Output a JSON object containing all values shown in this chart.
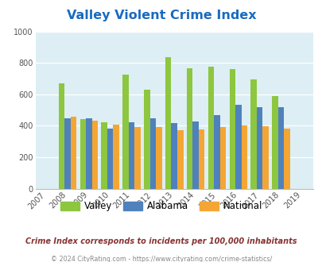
{
  "title": "Valley Violent Crime Index",
  "years": [
    2007,
    2008,
    2009,
    2010,
    2011,
    2012,
    2013,
    2014,
    2015,
    2016,
    2017,
    2018,
    2019
  ],
  "valley": [
    null,
    670,
    443,
    420,
    723,
    630,
    835,
    765,
    775,
    762,
    695,
    590,
    null
  ],
  "alabama": [
    null,
    450,
    448,
    382,
    420,
    450,
    418,
    428,
    467,
    533,
    518,
    518,
    null
  ],
  "national": [
    null,
    458,
    432,
    405,
    394,
    393,
    373,
    378,
    393,
    403,
    398,
    381,
    null
  ],
  "colors": {
    "valley": "#8dc63f",
    "alabama": "#4f81bd",
    "national": "#f4a634"
  },
  "ylim": [
    0,
    1000
  ],
  "yticks": [
    0,
    200,
    400,
    600,
    800,
    1000
  ],
  "bg_color": "#ddeef4",
  "subtitle": "Crime Index corresponds to incidents per 100,000 inhabitants",
  "footer": "© 2024 CityRating.com - https://www.cityrating.com/crime-statistics/",
  "title_color": "#1a6bbf",
  "subtitle_color": "#883333",
  "footer_color": "#888888",
  "bar_width": 0.28,
  "legend_labels": [
    "Valley",
    "Alabama",
    "National"
  ]
}
